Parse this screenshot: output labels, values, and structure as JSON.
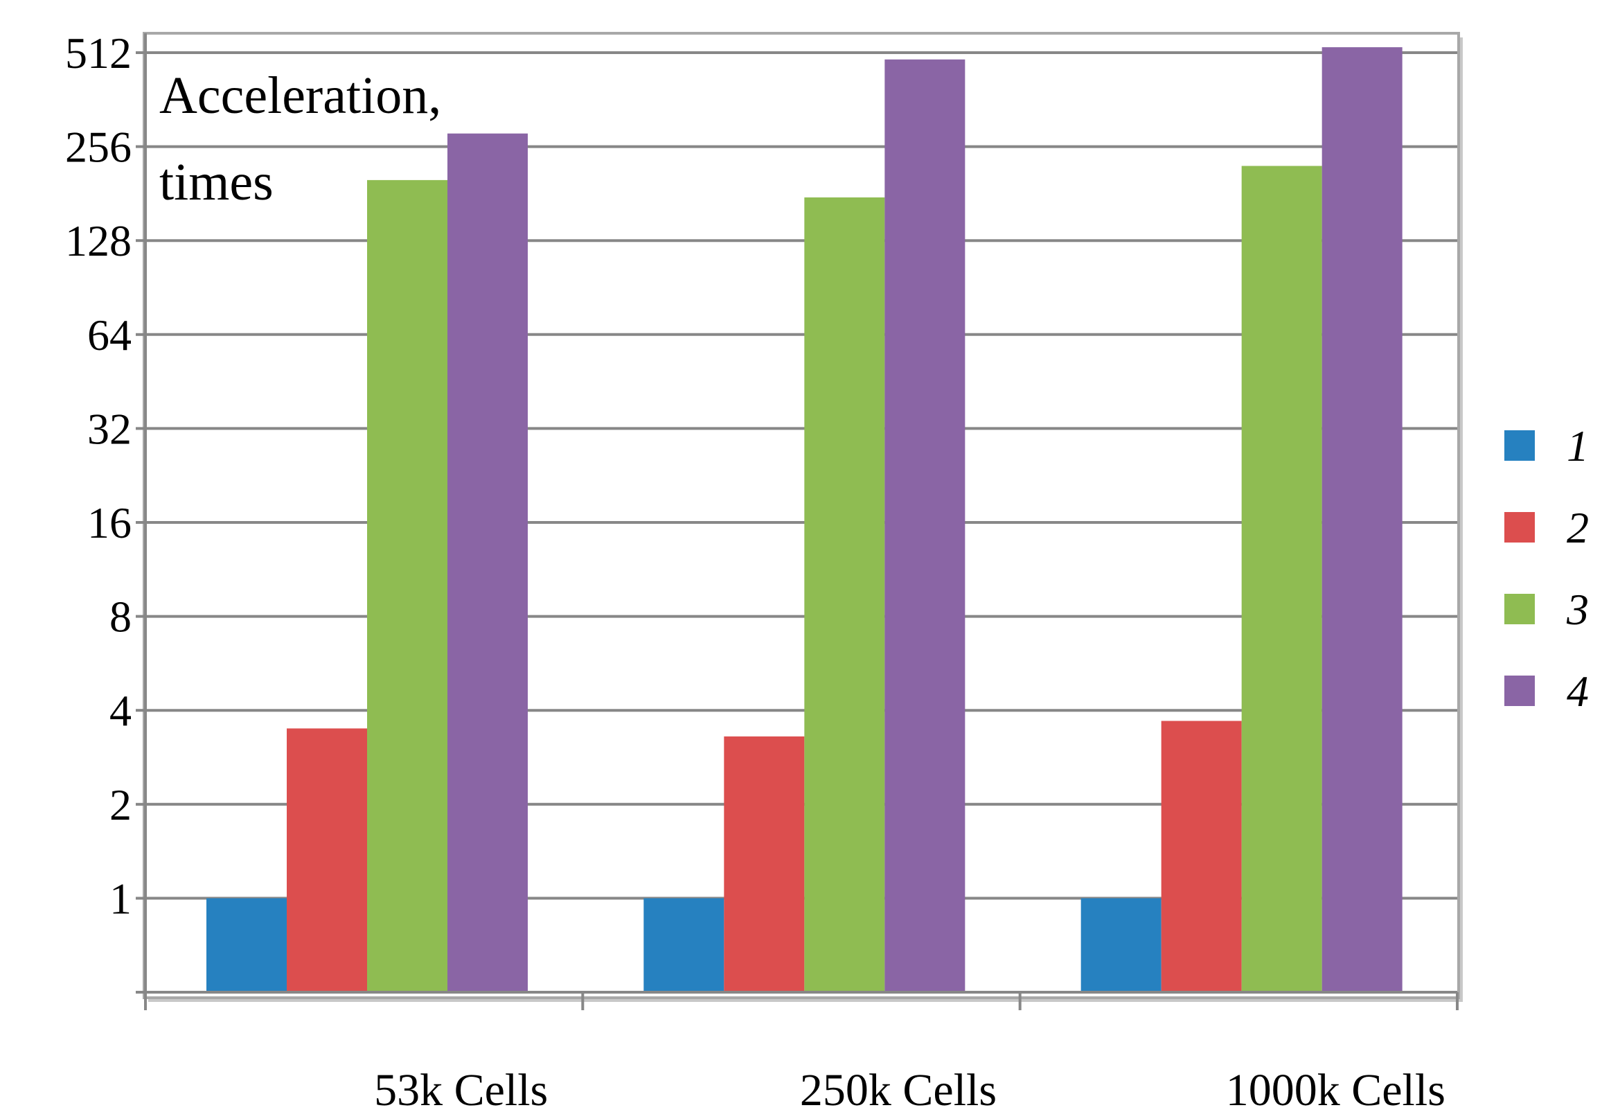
{
  "chart_data": {
    "type": "bar",
    "title": "Acceleration, times",
    "title_lines": [
      "Acceleration,",
      "times"
    ],
    "ylabel": "Acceleration, times",
    "xlabel": "",
    "yscale": "log2",
    "ylim": [
      0.5,
      512
    ],
    "yticks": [
      1,
      2,
      4,
      8,
      16,
      32,
      64,
      128,
      256,
      512
    ],
    "ytick_labels": [
      "1",
      "2",
      "4",
      "8",
      "16",
      "32",
      "64",
      "128",
      "256",
      "512"
    ],
    "grid": true,
    "legend_position": "right",
    "categories": [
      "53k Cells",
      "250k Cells",
      "1000k Cells"
    ],
    "series": [
      {
        "name": "1",
        "color": "#2681c0",
        "values": [
          1,
          1,
          1
        ]
      },
      {
        "name": "2",
        "color": "#dc4e4e",
        "values": [
          3.5,
          3.3,
          3.7
        ]
      },
      {
        "name": "3",
        "color": "#8fbc52",
        "values": [
          200,
          176,
          222
        ]
      },
      {
        "name": "4",
        "color": "#8a65a5",
        "values": [
          282,
          487,
          533
        ]
      }
    ]
  }
}
